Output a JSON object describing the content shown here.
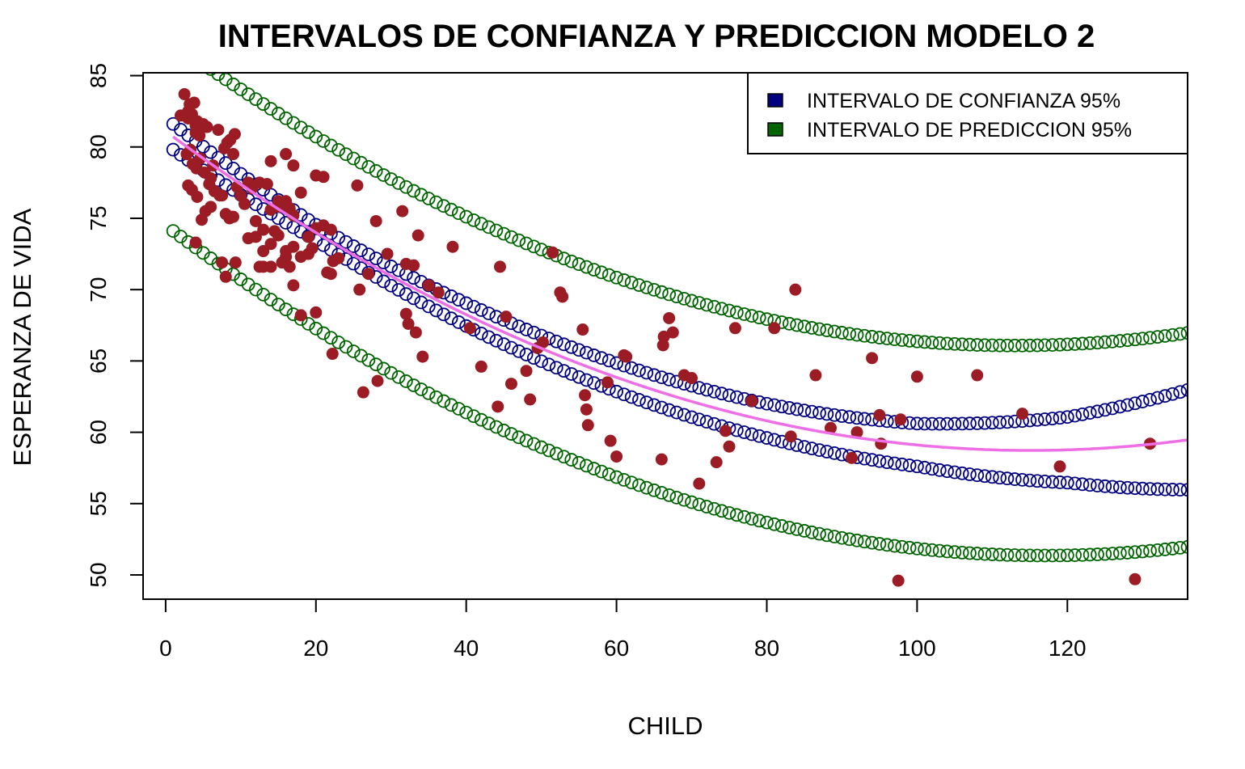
{
  "chart_data": {
    "type": "scatter",
    "title": "INTERVALOS DE CONFIANZA Y PREDICCION MODELO 2",
    "xlabel": "CHILD",
    "ylabel": "ESPERANZA DE VIDA",
    "xlim": [
      -3,
      136
    ],
    "ylim": [
      48.3,
      85.2
    ],
    "x_ticks": [
      0,
      20,
      40,
      60,
      80,
      100,
      120
    ],
    "y_ticks": [
      50,
      55,
      60,
      65,
      70,
      75,
      80,
      85
    ],
    "grid": false,
    "legend": {
      "placement": "top-right",
      "entries": [
        {
          "label": "INTERVALO DE CONFIANZA 95%",
          "color": "#000080"
        },
        {
          "label": "INTERVALO DE PREDICCION 95%",
          "color": "#006400"
        }
      ]
    },
    "colors": {
      "points": "#9b1c24",
      "confidence": "#000080",
      "prediction": "#006400",
      "fit": "#ee6ee6"
    },
    "fit_curve": {
      "a": 81.1,
      "b": -0.3889,
      "c": 0.00169,
      "x_range": [
        1,
        136
      ]
    },
    "interval_curves": {
      "x_range": [
        1,
        136
      ],
      "step": 1,
      "confidence_half_width": {
        "x": [
          1,
          20,
          40,
          60,
          80,
          100,
          120,
          136
        ],
        "w": [
          0.9,
          0.55,
          0.8,
          1.0,
          1.2,
          1.5,
          2.3,
          3.5
        ]
      },
      "prediction_half_width": {
        "x": [
          1,
          136
        ],
        "w": [
          6.6,
          7.5
        ]
      }
    },
    "scatter_points": {
      "x": [
        2,
        2.5,
        3,
        3,
        3.2,
        3.5,
        3.8,
        4,
        4,
        4.2,
        4.5,
        2.8,
        3.3,
        3.6,
        4.1,
        4.6,
        5,
        5.5,
        6,
        6.5,
        7,
        5.2,
        5.8,
        6.3,
        7.2,
        7.8,
        8.2,
        8.6,
        9,
        9.2,
        8.8,
        3,
        3.5,
        4.2,
        4.8,
        5.3,
        6,
        7.5,
        8,
        8.5,
        9,
        9.5,
        10,
        10.5,
        11,
        11.5,
        12,
        12.5,
        13,
        13.5,
        14,
        14.5,
        15,
        15.5,
        16,
        16.5,
        17,
        11,
        12,
        13,
        14,
        15,
        16,
        17,
        18,
        19,
        20,
        21,
        22,
        13,
        14,
        15,
        16,
        17,
        18,
        19,
        20,
        21,
        22,
        12.5,
        15.5,
        16.5,
        19.5,
        22.3,
        23,
        14,
        16,
        17,
        18,
        20,
        21.5,
        22.2,
        25.5,
        25.8,
        26.3,
        27,
        28,
        28.2,
        29.5,
        31.5,
        32,
        32,
        32.3,
        33,
        33.3,
        33.6,
        34.2,
        35,
        36.3,
        38.2,
        40.5,
        42,
        44.2,
        44.5,
        45.3,
        46,
        48,
        48.5,
        49.5,
        50.2,
        51.5,
        52.5,
        52.8,
        55.5,
        55.8,
        56,
        56.2,
        58.8,
        59.2,
        60,
        61,
        61.3,
        66,
        66.2,
        66.3,
        67,
        67.5,
        69,
        70,
        71,
        73.3,
        74.5,
        75,
        75.8,
        78,
        81,
        83.2,
        83.8,
        86.5,
        88.5,
        91.3,
        92,
        94,
        95,
        95.2,
        97.5,
        97.8,
        100,
        108,
        114,
        119,
        129,
        131,
        8,
        4,
        7.5,
        9.3
      ],
      "y": [
        82.2,
        83.7,
        82,
        82.5,
        83,
        82.3,
        83.1,
        81.5,
        81,
        81.8,
        80.8,
        79.5,
        79.8,
        78.8,
        78.5,
        79.2,
        81.6,
        81.4,
        77.8,
        76.9,
        81.2,
        78.2,
        77.4,
        78.7,
        76.6,
        79.9,
        80.3,
        80.5,
        79.5,
        80.9,
        75.1,
        77.3,
        77,
        76.5,
        74.9,
        75.5,
        75.8,
        76.6,
        75.3,
        75,
        75.1,
        77.2,
        76.6,
        76,
        77.5,
        77.1,
        74.8,
        77.5,
        74.2,
        77.4,
        75.6,
        74.1,
        75.8,
        75.9,
        76.2,
        75.7,
        75.2,
        73.6,
        73.7,
        72.7,
        73.2,
        73.8,
        72.7,
        73,
        72.3,
        73.7,
        74.3,
        74.5,
        74.2,
        71.6,
        79,
        76.2,
        79.5,
        78.7,
        76.8,
        72.5,
        78,
        77.9,
        71.1,
        71.6,
        71.9,
        71.6,
        72.9,
        72,
        72.2,
        71.6,
        72.3,
        70.3,
        68.2,
        68.4,
        71.2,
        65.5,
        77.3,
        70,
        62.8,
        71.1,
        74.8,
        63.6,
        72.5,
        75.5,
        68.3,
        71.8,
        67.6,
        71.7,
        67,
        73.8,
        65.3,
        70.3,
        69.8,
        73,
        67.3,
        64.6,
        61.8,
        71.6,
        68.1,
        63.4,
        64.3,
        62.3,
        65.9,
        66.3,
        72.6,
        69.8,
        69.5,
        67.2,
        62.6,
        61.6,
        60.5,
        63.5,
        59.4,
        58.3,
        65.4,
        65.3,
        58.1,
        66.1,
        66.7,
        68,
        67,
        64,
        63.8,
        56.4,
        57.9,
        60.1,
        59,
        67.3,
        62.2,
        67.3,
        59.7,
        70,
        64,
        60.3,
        58.2,
        60,
        65.2,
        61.2,
        59.2,
        49.6,
        60.9,
        63.9,
        64,
        61.3,
        57.6,
        49.7,
        59.2,
        70.9,
        73.3,
        71.9,
        71.9
      ]
    }
  }
}
